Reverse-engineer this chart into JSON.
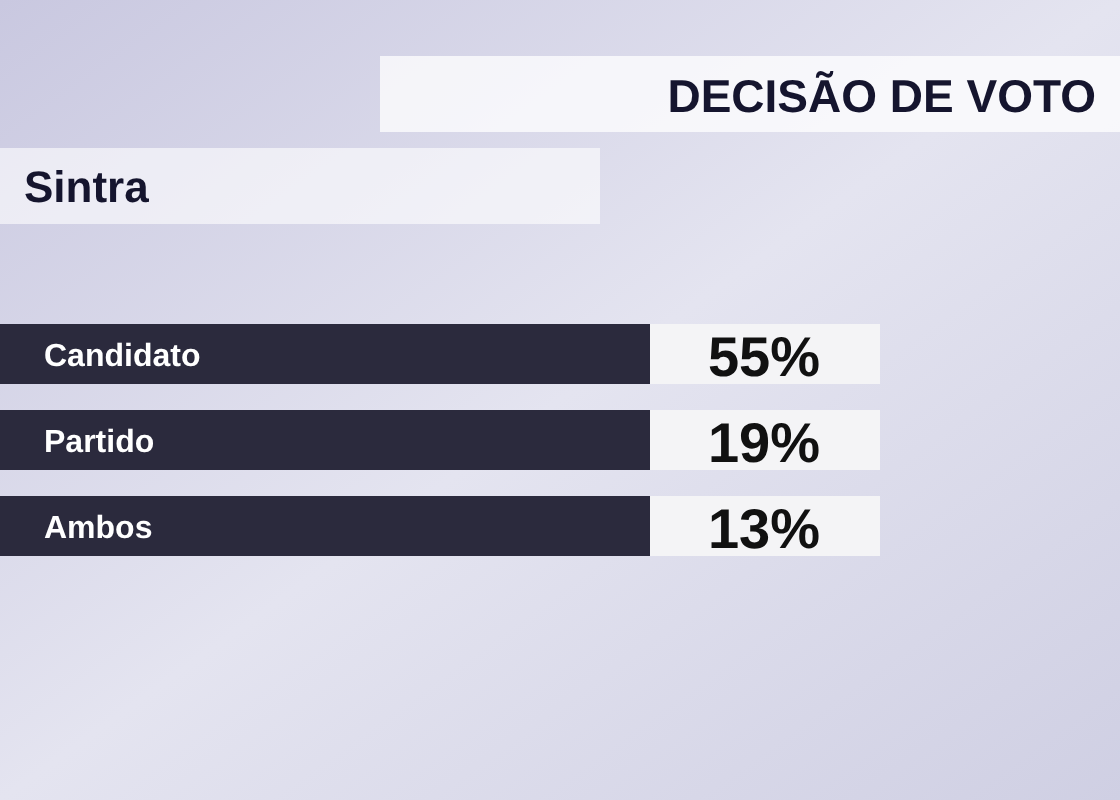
{
  "chart_data": {
    "type": "other",
    "title": "DECISÃO DE VOTO",
    "subtitle": "Sintra",
    "categories": [
      "Candidato",
      "Partido",
      "Ambos"
    ],
    "values": [
      55,
      19,
      13
    ],
    "value_labels": [
      "55%",
      "19%",
      "13%"
    ]
  }
}
